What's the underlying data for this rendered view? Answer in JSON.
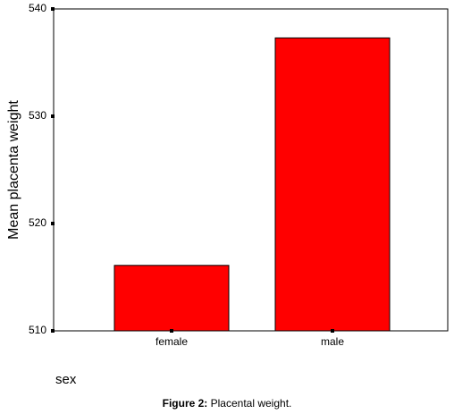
{
  "chart_data": {
    "type": "bar",
    "x_label": "sex",
    "y_label": "Mean placenta weight",
    "categories": [
      "female",
      "male"
    ],
    "values": [
      516.1,
      537.3
    ],
    "color": "#ff0000",
    "ylim": [
      510,
      540
    ],
    "yticks": [
      510,
      520,
      530,
      540
    ],
    "grid": false
  },
  "caption": {
    "label": "Figure 2:",
    "text": "Placental weight."
  }
}
